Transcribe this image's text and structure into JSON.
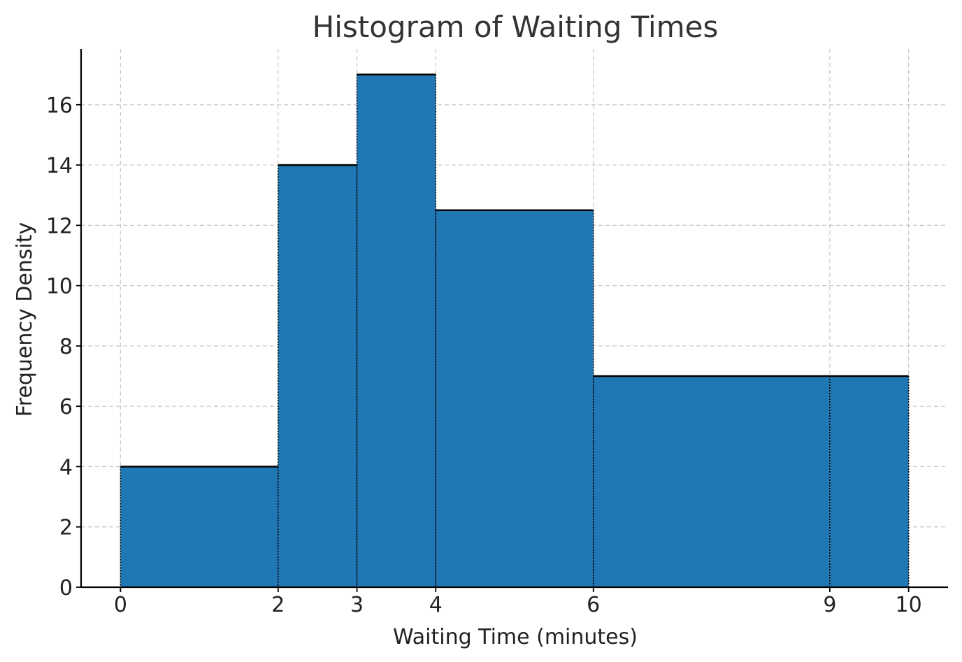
{
  "chart_data": {
    "type": "bar",
    "title": "Histogram of Waiting Times",
    "xlabel": "Waiting Time (minutes)",
    "ylabel": "Frequency Density",
    "bins": [
      {
        "start": 0,
        "end": 2,
        "value": 4
      },
      {
        "start": 2,
        "end": 3,
        "value": 14
      },
      {
        "start": 3,
        "end": 4,
        "value": 17
      },
      {
        "start": 4,
        "end": 6,
        "value": 12.5
      },
      {
        "start": 6,
        "end": 9,
        "value": 7
      },
      {
        "start": 9,
        "end": 10,
        "value": 7
      }
    ],
    "x_ticks": [
      0,
      2,
      3,
      4,
      6,
      9,
      10
    ],
    "y_ticks": [
      0,
      2,
      4,
      6,
      8,
      10,
      12,
      14,
      16
    ],
    "xlim": [
      -0.5,
      10.5
    ],
    "ylim": [
      0,
      17.85
    ],
    "grid": true,
    "bar_color": "#1f77b4",
    "edge_color": "#000000",
    "grid_color": "#c8c8c8"
  }
}
